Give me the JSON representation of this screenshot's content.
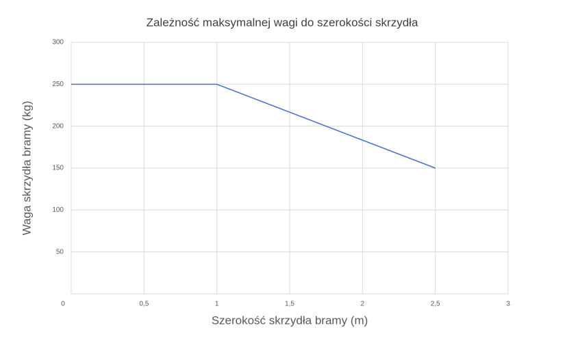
{
  "chart_data": {
    "type": "line",
    "title": "Zależność maksymalnej wagi do szerokości skrzydła",
    "x_label": "Szerokość skrzydła bramy (m)",
    "y_label": "Waga skrzydła bramy (kg)",
    "x": [
      0,
      1,
      2.5
    ],
    "series": [
      {
        "name": "Waga",
        "color": "#4472c4",
        "values": [
          250,
          250,
          150
        ]
      }
    ],
    "xlim": [
      0,
      3
    ],
    "xticks": [
      0,
      {
        "value": 0.5,
        "label": "0,5"
      },
      1,
      {
        "value": 1.5,
        "label": "1,5"
      },
      2,
      {
        "value": 2.5,
        "label": "2,5"
      },
      3
    ],
    "ylim": [
      0,
      300
    ],
    "yticks": [
      50,
      100,
      150,
      200,
      250,
      300
    ],
    "grid": true
  }
}
